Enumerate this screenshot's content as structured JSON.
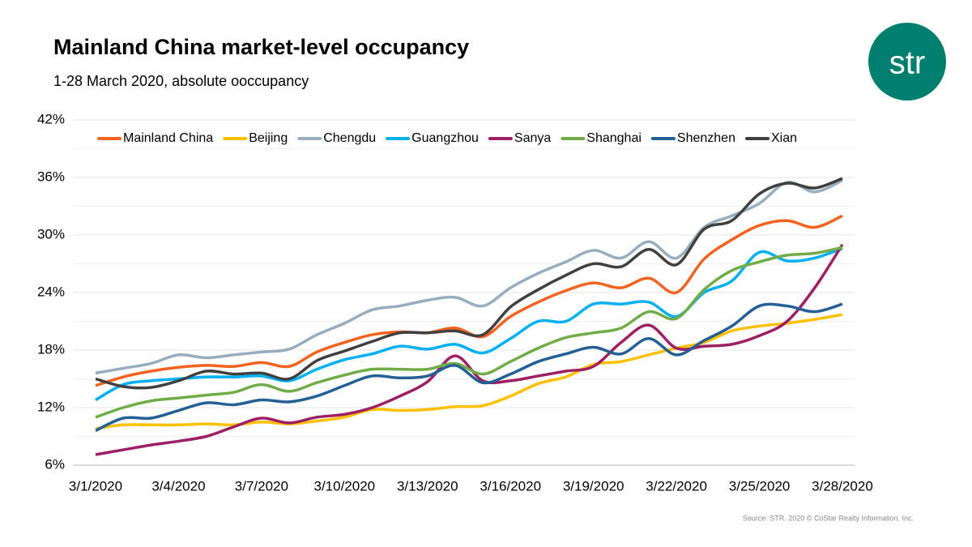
{
  "chart_data": {
    "type": "line",
    "title": "Mainland China market-level occupancy",
    "subtitle": "1-28 March 2020, absolute ooccupancy",
    "logo": "str",
    "source": "Source: STR. 2020 © CoStar Realty Information, Inc.",
    "categories": [
      "3/1/2020",
      null,
      null,
      "3/4/2020",
      null,
      null,
      "3/7/2020",
      null,
      null,
      "3/10/2020",
      null,
      null,
      "3/13/2020",
      null,
      null,
      "3/16/2020",
      null,
      null,
      "3/19/2020",
      null,
      null,
      "3/22/2020",
      null,
      null,
      "3/25/2020",
      null,
      null,
      "3/28/2020"
    ],
    "ylim": [
      6,
      42
    ],
    "yticks": [
      {
        "value": 6,
        "label": "6%"
      },
      {
        "value": 12,
        "label": "12%"
      },
      {
        "value": 18,
        "label": "18%"
      },
      {
        "value": 24,
        "label": "24%"
      },
      {
        "value": 30,
        "label": "30%"
      },
      {
        "value": 36,
        "label": "36%"
      },
      {
        "value": 42,
        "label": "42%"
      }
    ],
    "minor_grid": [
      9,
      15,
      21,
      27,
      33,
      39
    ],
    "grid": true,
    "legend": "top",
    "series": [
      {
        "name": "Mainland China",
        "color": "#f4621f",
        "values": [
          14.3,
          15.2,
          15.8,
          16.2,
          16.4,
          16.3,
          16.7,
          16.3,
          17.8,
          18.8,
          19.6,
          19.9,
          19.8,
          20.3,
          19.4,
          21.5,
          23.0,
          24.2,
          25.0,
          24.5,
          25.5,
          24.0,
          27.5,
          29.5,
          31.0,
          31.5,
          30.8,
          32.0
        ]
      },
      {
        "name": "Beijing",
        "color": "#ffc000",
        "values": [
          9.8,
          10.2,
          10.2,
          10.2,
          10.3,
          10.2,
          10.5,
          10.3,
          10.6,
          11.0,
          11.8,
          11.7,
          11.8,
          12.1,
          12.2,
          13.2,
          14.5,
          15.2,
          16.5,
          16.8,
          17.5,
          18.2,
          18.8,
          20.0,
          20.5,
          20.8,
          21.2,
          21.7
        ]
      },
      {
        "name": "Chengdu",
        "color": "#98adbd",
        "values": [
          15.6,
          16.1,
          16.6,
          17.5,
          17.2,
          17.5,
          17.8,
          18.1,
          19.6,
          20.8,
          22.2,
          22.6,
          23.2,
          23.5,
          22.6,
          24.5,
          26.0,
          27.2,
          28.4,
          27.6,
          29.3,
          27.6,
          30.8,
          32.0,
          33.3,
          35.5,
          34.5,
          35.7
        ]
      },
      {
        "name": "Guangzhou",
        "color": "#00b0f0",
        "values": [
          12.8,
          14.4,
          14.8,
          15.0,
          15.2,
          15.2,
          15.3,
          14.8,
          16.0,
          17.0,
          17.6,
          18.4,
          18.1,
          18.6,
          17.7,
          19.2,
          21.0,
          21.0,
          22.8,
          22.8,
          23.0,
          21.5,
          24.0,
          25.2,
          28.2,
          27.3,
          27.6,
          28.6
        ]
      },
      {
        "name": "Sanya",
        "color": "#9e1f63",
        "values": [
          7.1,
          7.6,
          8.1,
          8.5,
          9.0,
          10.0,
          10.9,
          10.4,
          11.0,
          11.3,
          12.0,
          13.2,
          14.7,
          17.4,
          14.8,
          14.8,
          15.3,
          15.8,
          16.3,
          18.8,
          20.6,
          18.2,
          18.4,
          18.6,
          19.5,
          21.0,
          24.5,
          29.0
        ]
      },
      {
        "name": "Shanghai",
        "color": "#70ad47",
        "values": [
          11.0,
          12.0,
          12.7,
          13.0,
          13.3,
          13.6,
          14.4,
          13.7,
          14.6,
          15.4,
          16.0,
          16.0,
          16.0,
          16.6,
          15.5,
          16.8,
          18.2,
          19.3,
          19.8,
          20.3,
          22.0,
          21.3,
          24.3,
          26.3,
          27.2,
          27.9,
          28.1,
          28.7
        ]
      },
      {
        "name": "Shenzhen",
        "color": "#245f95",
        "values": [
          9.6,
          10.9,
          10.9,
          11.7,
          12.5,
          12.3,
          12.8,
          12.6,
          13.2,
          14.3,
          15.3,
          15.1,
          15.3,
          16.4,
          14.6,
          15.5,
          16.8,
          17.6,
          18.3,
          17.6,
          19.2,
          17.5,
          19.0,
          20.5,
          22.6,
          22.6,
          22.0,
          22.8
        ]
      },
      {
        "name": "Xian",
        "color": "#404040",
        "values": [
          15.0,
          14.2,
          14.1,
          14.8,
          15.8,
          15.5,
          15.6,
          15.0,
          16.9,
          17.9,
          18.9,
          19.8,
          19.8,
          20.0,
          19.6,
          22.5,
          24.3,
          25.8,
          27.0,
          26.7,
          28.5,
          26.9,
          30.6,
          31.5,
          34.3,
          35.4,
          34.9,
          35.9
        ]
      }
    ]
  }
}
